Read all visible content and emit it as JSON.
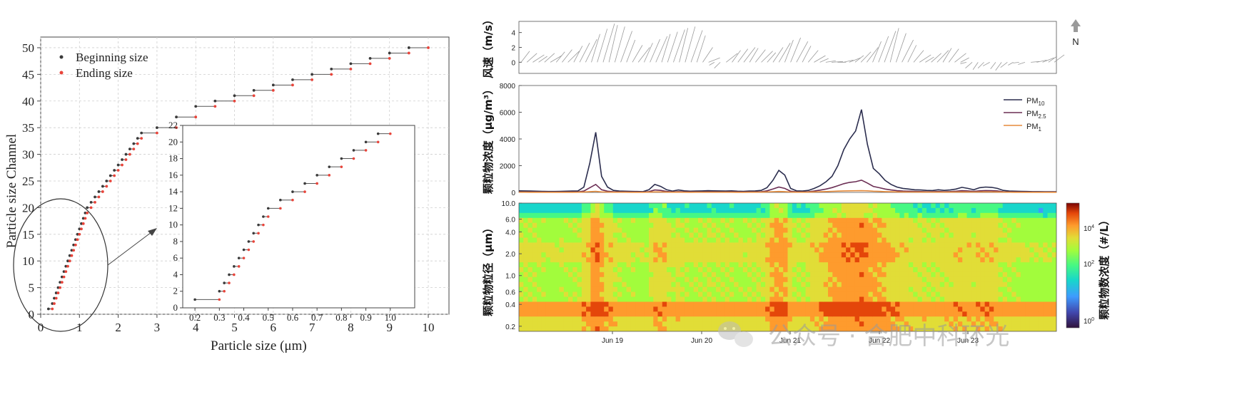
{
  "colors": {
    "beginning": "#3a3a3a",
    "ending": "#e8443a",
    "pm10": "#2b2d4e",
    "pm25": "#6b2e54",
    "pm1": "#e58a3a",
    "wind_arrow": "#9a9a9a",
    "watermark": "#bdbdbd"
  },
  "watermark": {
    "icon": "wechat-icon",
    "text": "公众号 · 合肥中科环光"
  },
  "chart_data": [
    {
      "type": "scatter",
      "xlabel": "Particle size (μm)",
      "ylabel": "Particle size Channel",
      "xlim": [
        0,
        10
      ],
      "ylim": [
        0,
        52
      ],
      "xticks": [
        "0",
        "1",
        "2",
        "3",
        "4",
        "5",
        "6",
        "7",
        "8",
        "9",
        "10"
      ],
      "yticks": [
        "0",
        "5",
        "10",
        "15",
        "20",
        "25",
        "30",
        "35",
        "40",
        "45",
        "50"
      ],
      "grid": true,
      "legend_position": "top-left",
      "series": [
        {
          "name": "Beginning size",
          "x": [
            0.2,
            0.3,
            0.35,
            0.4,
            0.45,
            0.5,
            0.55,
            0.6,
            0.65,
            0.7,
            0.75,
            0.8,
            0.85,
            0.9,
            0.95,
            1.0,
            1.05,
            1.1,
            1.15,
            1.2,
            1.3,
            1.4,
            1.5,
            1.6,
            1.7,
            1.8,
            1.9,
            2.0,
            2.1,
            2.2,
            2.3,
            2.4,
            2.5,
            2.6,
            3.0,
            3.5,
            4.0,
            4.5,
            5.0,
            5.5,
            6.0,
            6.5,
            7.0,
            7.5,
            8.0,
            8.5,
            9.0,
            9.5
          ],
          "y": [
            1,
            2,
            3,
            4,
            5,
            6,
            7,
            8,
            9,
            10,
            11,
            12,
            13,
            14,
            15,
            16,
            17,
            18,
            19,
            20,
            21,
            22,
            23,
            24,
            25,
            26,
            27,
            28,
            29,
            30,
            31,
            32,
            33,
            34,
            35,
            37,
            39,
            40,
            41,
            42,
            43,
            44,
            45,
            46,
            47,
            48,
            49,
            50
          ]
        },
        {
          "name": "Ending size",
          "x": [
            0.3,
            0.35,
            0.4,
            0.45,
            0.5,
            0.55,
            0.6,
            0.65,
            0.7,
            0.75,
            0.8,
            0.85,
            0.9,
            0.95,
            1.0,
            1.05,
            1.1,
            1.15,
            1.2,
            1.3,
            1.4,
            1.5,
            1.6,
            1.7,
            1.8,
            1.9,
            2.0,
            2.1,
            2.2,
            2.3,
            2.4,
            2.5,
            2.6,
            3.0,
            3.5,
            4.0,
            4.5,
            5.0,
            5.5,
            6.0,
            6.5,
            7.0,
            7.5,
            8.0,
            8.5,
            9.0,
            9.5,
            10.0
          ],
          "y": [
            1,
            2,
            3,
            4,
            5,
            6,
            7,
            8,
            9,
            10,
            11,
            12,
            13,
            14,
            15,
            16,
            17,
            18,
            19,
            20,
            21,
            22,
            23,
            24,
            25,
            26,
            27,
            28,
            29,
            30,
            31,
            32,
            33,
            34,
            35,
            37,
            39,
            40,
            41,
            42,
            43,
            44,
            45,
            46,
            47,
            48,
            49,
            50
          ]
        }
      ]
    },
    {
      "type": "scatter",
      "inset": true,
      "xlim": [
        0.15,
        1.1
      ],
      "ylim": [
        0,
        22
      ],
      "xticks": [
        "0.2",
        "0.3",
        "0.4",
        "0.5",
        "0.6",
        "0.7",
        "0.8",
        "0.9",
        "1.0"
      ],
      "yticks": [
        "0",
        "2",
        "4",
        "6",
        "8",
        "10",
        "12",
        "14",
        "16",
        "18",
        "20",
        "22"
      ],
      "series": [
        {
          "name": "Beginning size",
          "x": [
            0.2,
            0.3,
            0.32,
            0.34,
            0.36,
            0.38,
            0.4,
            0.42,
            0.44,
            0.46,
            0.48,
            0.5,
            0.55,
            0.6,
            0.65,
            0.7,
            0.75,
            0.8,
            0.85,
            0.9,
            0.95
          ],
          "y": [
            1,
            2,
            3,
            4,
            5,
            6,
            7,
            8,
            9,
            10,
            11,
            12,
            13,
            14,
            15,
            16,
            17,
            18,
            19,
            20,
            21
          ]
        },
        {
          "name": "Ending size",
          "x": [
            0.3,
            0.32,
            0.34,
            0.36,
            0.38,
            0.4,
            0.42,
            0.44,
            0.46,
            0.48,
            0.5,
            0.55,
            0.6,
            0.65,
            0.7,
            0.75,
            0.8,
            0.85,
            0.9,
            0.95,
            1.0
          ],
          "y": [
            1,
            2,
            3,
            4,
            5,
            6,
            7,
            8,
            9,
            10,
            11,
            12,
            13,
            14,
            15,
            16,
            17,
            18,
            19,
            20,
            21
          ]
        }
      ]
    },
    {
      "type": "line",
      "subtype": "wind-vectors",
      "ylabel": "风速（m/s）",
      "yticks": [
        "0",
        "2",
        "4"
      ],
      "ylim": [
        -1.5,
        5.5
      ],
      "north_label": "N",
      "speed": [
        1.5,
        1.2,
        1.0,
        0.8,
        1.2,
        0.9,
        1.4,
        1.7,
        1.5,
        2.2,
        2.6,
        3.1,
        3.8,
        4.5,
        5.2,
        5.0,
        4.8,
        4.2,
        3.0,
        2.3,
        2.0,
        2.6,
        3.1,
        3.5,
        3.8,
        4.1,
        4.4,
        4.6,
        4.8,
        4.3,
        3.6,
        2.0,
        0.6,
        -0.4,
        -0.8,
        1.2,
        1.6,
        1.8,
        2.0,
        1.9,
        1.7,
        1.5,
        1.3,
        2.0,
        2.6,
        3.0,
        3.3,
        2.8,
        2.2,
        1.6,
        0.9,
        0.5,
        0.2,
        0.1,
        0.0,
        0.3,
        0.6,
        0.9,
        1.4,
        2.0,
        2.8,
        3.5,
        4.2,
        4.6,
        3.9,
        3.0,
        2.3,
        1.6,
        1.0,
        0.7,
        1.2,
        1.6,
        1.9,
        1.8,
        1.2,
        0.6,
        -0.2,
        -0.8,
        -1.0,
        -0.8,
        -0.5,
        -0.9,
        -1.1,
        -0.7,
        -0.4,
        -0.1,
        -0.3,
        0.1,
        0.3,
        0.6,
        0.8,
        1.0
      ]
    },
    {
      "type": "line",
      "ylabel": "颗粒物浓度（μg/m³）",
      "ylim": [
        0,
        8000
      ],
      "yticks": [
        "0",
        "2000",
        "4000",
        "6000",
        "8000"
      ],
      "legend_position": "top-right",
      "series": [
        {
          "name": "PM10",
          "label": "PM",
          "sub": "10",
          "values": [
            120,
            110,
            100,
            90,
            80,
            70,
            70,
            80,
            90,
            100,
            110,
            400,
            2200,
            4500,
            1200,
            400,
            150,
            100,
            90,
            80,
            70,
            60,
            200,
            600,
            450,
            200,
            100,
            180,
            120,
            90,
            100,
            110,
            130,
            120,
            110,
            100,
            120,
            90,
            80,
            100,
            110,
            150,
            350,
            900,
            1650,
            1300,
            300,
            120,
            100,
            150,
            300,
            500,
            800,
            1200,
            2000,
            3200,
            4000,
            4600,
            6200,
            3600,
            1800,
            1400,
            900,
            600,
            400,
            300,
            250,
            200,
            180,
            150,
            140,
            200,
            150,
            180,
            250,
            380,
            300,
            200,
            350,
            400,
            380,
            300,
            150,
            100,
            90,
            80,
            70,
            60,
            60,
            50,
            50,
            50
          ]
        },
        {
          "name": "PM2.5",
          "label": "PM",
          "sub": "2.5",
          "values": [
            40,
            38,
            35,
            32,
            30,
            28,
            28,
            30,
            32,
            35,
            40,
            100,
            350,
            600,
            200,
            90,
            50,
            40,
            35,
            32,
            30,
            28,
            60,
            180,
            150,
            70,
            40,
            60,
            45,
            35,
            38,
            40,
            45,
            42,
            40,
            38,
            42,
            35,
            32,
            38,
            40,
            55,
            120,
            250,
            400,
            300,
            90,
            45,
            40,
            55,
            100,
            170,
            250,
            360,
            500,
            650,
            750,
            800,
            920,
            700,
            450,
            350,
            250,
            180,
            130,
            100,
            90,
            75,
            65,
            55,
            52,
            70,
            55,
            65,
            90,
            130,
            110,
            75,
            120,
            140,
            130,
            110,
            55,
            40,
            35,
            32,
            30,
            28,
            28,
            25,
            25,
            25
          ]
        },
        {
          "name": "PM1",
          "label": "PM",
          "sub": "1",
          "values": [
            15,
            14,
            13,
            12,
            11,
            11,
            11,
            12,
            12,
            13,
            15,
            30,
            60,
            80,
            40,
            25,
            18,
            15,
            14,
            13,
            12,
            11,
            20,
            40,
            35,
            22,
            15,
            20,
            16,
            13,
            14,
            15,
            16,
            15,
            15,
            14,
            15,
            13,
            12,
            14,
            15,
            20,
            35,
            55,
            70,
            60,
            30,
            17,
            15,
            20,
            35,
            50,
            65,
            80,
            95,
            110,
            120,
            125,
            130,
            115,
            90,
            75,
            60,
            48,
            38,
            30,
            28,
            25,
            22,
            20,
            19,
            24,
            20,
            23,
            30,
            38,
            34,
            25,
            36,
            40,
            38,
            33,
            20,
            15,
            13,
            12,
            11,
            11,
            11,
            10,
            10,
            10
          ]
        }
      ]
    },
    {
      "type": "heatmap",
      "ylabel": "颗粒物粒径（μm）",
      "yticks": [
        "0.2",
        "0.4",
        "0.6",
        "1.0",
        "2.0",
        "4.0",
        "6.0",
        "10.0"
      ],
      "xticks": [
        "Jun 19",
        "Jun 20",
        "Jun 21",
        "Jun 22",
        "Jun 23"
      ],
      "colorbar_label": "颗粒物数浓度（#/L）",
      "colorbar_ticks": [
        {
          "base": "10",
          "exp": "0"
        },
        {
          "base": "10",
          "exp": "2"
        },
        {
          "base": "10",
          "exp": "4"
        }
      ]
    }
  ]
}
